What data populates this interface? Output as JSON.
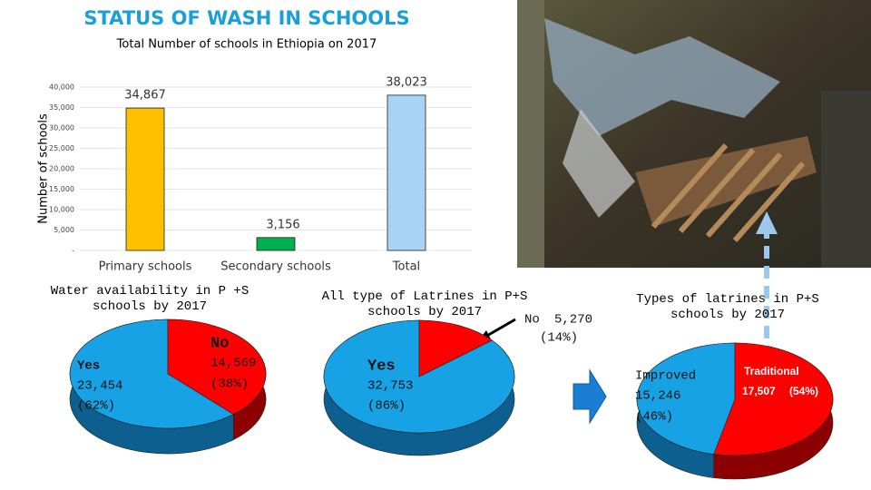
{
  "slide_title": "STATUS OF WASH IN SCHOOLS",
  "chart_data": [
    {
      "type": "bar",
      "title": "Total Number of schools in Ethiopia on 2017",
      "ylabel": "Number of schools",
      "categories": [
        "Primary schools",
        "Secondary schools",
        "Total"
      ],
      "values": [
        34867,
        3156,
        38023
      ],
      "value_labels": [
        "34,867",
        "3,156",
        "38,023"
      ],
      "colors": [
        "#ffc000",
        "#00b050",
        "#a9d3f5"
      ],
      "ylim": [
        0,
        40000
      ],
      "yticks": [
        {
          "value": 0,
          "label": "-"
        },
        {
          "value": 5000,
          "label": "5,000"
        },
        {
          "value": 10000,
          "label": "10,000"
        },
        {
          "value": 15000,
          "label": "15,000"
        },
        {
          "value": 20000,
          "label": "20,000"
        },
        {
          "value": 25000,
          "label": "25,000"
        },
        {
          "value": 30000,
          "label": "30,000"
        },
        {
          "value": 35000,
          "label": "35,000"
        },
        {
          "value": 40000,
          "label": "40,000"
        }
      ],
      "grid": true
    },
    {
      "type": "pie",
      "title": "Water availability in P +S schools by 2017",
      "categories": [
        "Yes",
        "No"
      ],
      "values": [
        23454,
        14569
      ],
      "value_labels": [
        "23,454",
        "14,569"
      ],
      "percent_labels": [
        "(62%)",
        "(38%)"
      ],
      "colors": [
        "#17a2e6",
        "#ff0000"
      ]
    },
    {
      "type": "pie",
      "title": "All type of Latrines in P+S schools by 2017",
      "categories": [
        "Yes",
        "No"
      ],
      "values": [
        32753,
        5270
      ],
      "value_labels": [
        "32,753",
        "5,270"
      ],
      "percent_labels": [
        "(86%)",
        "(14%)"
      ],
      "colors": [
        "#17a2e6",
        "#ff0000"
      ]
    },
    {
      "type": "pie",
      "title": "Types of latrines in P+S schools by 2017",
      "categories": [
        "Improved",
        "Traditional"
      ],
      "values": [
        15246,
        17507
      ],
      "value_labels": [
        "15,246",
        "17,507"
      ],
      "percent_labels": [
        "(46%)",
        "(54%)"
      ],
      "colors": [
        "#17a2e6",
        "#ff0000"
      ]
    }
  ]
}
